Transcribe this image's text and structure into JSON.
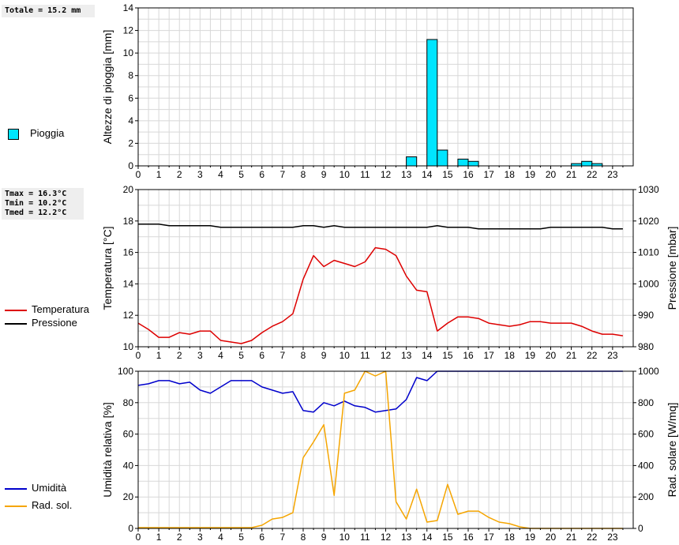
{
  "panel1": {
    "stat": "Totale = 15.2 mm",
    "legend": [
      {
        "label": "Pioggia",
        "color": "#00e5ff"
      }
    ]
  },
  "panel2": {
    "stats": [
      "Tmax = 16.3°C",
      "Tmin = 10.2°C",
      "Tmed = 12.2°C"
    ],
    "legend": [
      {
        "label": "Temperatura",
        "color": "#dd0000"
      },
      {
        "label": "Pressione",
        "color": "#000000"
      }
    ]
  },
  "panel3": {
    "legend": [
      {
        "label": "Umidità",
        "color": "#0000cc"
      },
      {
        "label": "Rad. sol.",
        "color": "#f5a500"
      }
    ]
  },
  "chart_data": [
    {
      "type": "bar",
      "ylabel": "Altezze di pioggia [mm]",
      "xlim": [
        0,
        24
      ],
      "ylim": [
        0,
        14
      ],
      "yticks": [
        0,
        2,
        4,
        6,
        8,
        10,
        12,
        14
      ],
      "xticks": [
        0,
        1,
        2,
        3,
        4,
        5,
        6,
        7,
        8,
        9,
        10,
        11,
        12,
        13,
        14,
        15,
        16,
        17,
        18,
        19,
        20,
        21,
        22,
        23
      ],
      "grid": true,
      "series": [
        {
          "name": "Pioggia",
          "color": "#00e5ff",
          "bars": [
            {
              "x": 13.0,
              "value": 0.8
            },
            {
              "x": 14.0,
              "value": 11.2
            },
            {
              "x": 14.5,
              "value": 1.4
            },
            {
              "x": 15.5,
              "value": 0.6
            },
            {
              "x": 16.0,
              "value": 0.4
            },
            {
              "x": 21.0,
              "value": 0.2
            },
            {
              "x": 21.5,
              "value": 0.4
            },
            {
              "x": 22.0,
              "value": 0.2
            }
          ]
        }
      ]
    },
    {
      "type": "line",
      "ylabel": "Temperatura [°C]",
      "y2label": "Pressione [mbar]",
      "xlim": [
        0,
        24
      ],
      "ylim": [
        10,
        20
      ],
      "y2lim": [
        980,
        1030
      ],
      "yticks": [
        10,
        12,
        14,
        16,
        18,
        20
      ],
      "y2ticks": [
        980,
        990,
        1000,
        1010,
        1020,
        1030
      ],
      "xticks": [
        0,
        1,
        2,
        3,
        4,
        5,
        6,
        7,
        8,
        9,
        10,
        11,
        12,
        13,
        14,
        15,
        16,
        17,
        18,
        19,
        20,
        21,
        22,
        23
      ],
      "grid": true,
      "series": [
        {
          "name": "Temperatura",
          "color": "#dd0000",
          "axis": "left",
          "x": [
            0,
            0.5,
            1,
            1.5,
            2,
            2.5,
            3,
            3.5,
            4,
            4.5,
            5,
            5.5,
            6,
            6.5,
            7,
            7.5,
            8,
            8.5,
            9,
            9.5,
            10,
            10.5,
            11,
            11.5,
            12,
            12.5,
            13,
            13.5,
            14,
            14.5,
            15,
            15.5,
            16,
            16.5,
            17,
            17.5,
            18,
            18.5,
            19,
            19.5,
            20,
            20.5,
            21,
            21.5,
            22,
            22.5,
            23,
            23.5
          ],
          "y": [
            11.5,
            11.1,
            10.6,
            10.6,
            10.9,
            10.8,
            11.0,
            11.0,
            10.4,
            10.3,
            10.2,
            10.4,
            10.9,
            11.3,
            11.6,
            12.1,
            14.3,
            15.8,
            15.1,
            15.5,
            15.3,
            15.1,
            15.4,
            16.3,
            16.2,
            15.8,
            14.5,
            13.6,
            13.5,
            11.0,
            11.5,
            11.9,
            11.9,
            11.8,
            11.5,
            11.4,
            11.3,
            11.4,
            11.6,
            11.6,
            11.5,
            11.5,
            11.5,
            11.3,
            11.0,
            10.8,
            10.8,
            10.7
          ]
        },
        {
          "name": "Pressione",
          "color": "#000000",
          "axis": "right",
          "x": [
            0,
            1,
            1.5,
            2,
            3.5,
            4,
            7.5,
            8,
            8.5,
            9,
            9.5,
            10,
            10.5,
            11,
            14,
            14.5,
            15,
            16,
            16.5,
            19,
            19.5,
            20,
            22.5,
            23,
            23.5
          ],
          "y": [
            1019,
            1019,
            1018.5,
            1018.5,
            1018.5,
            1018,
            1018,
            1018.5,
            1018.5,
            1018,
            1018.5,
            1018,
            1018,
            1018,
            1018,
            1018.5,
            1018,
            1018,
            1017.5,
            1017.5,
            1017.5,
            1018,
            1018,
            1017.5,
            1017.5
          ]
        }
      ]
    },
    {
      "type": "line",
      "ylabel": "Umidità relativa [%]",
      "y2label": "Rad. solare [W/mq]",
      "xlim": [
        0,
        24
      ],
      "ylim": [
        0,
        100
      ],
      "y2lim": [
        0,
        1000
      ],
      "yticks": [
        0,
        20,
        40,
        60,
        80,
        100
      ],
      "y2ticks": [
        0,
        200,
        400,
        600,
        800,
        1000
      ],
      "xticks": [
        0,
        1,
        2,
        3,
        4,
        5,
        6,
        7,
        8,
        9,
        10,
        11,
        12,
        13,
        14,
        15,
        16,
        17,
        18,
        19,
        20,
        21,
        22,
        23
      ],
      "grid": true,
      "series": [
        {
          "name": "Umidità",
          "color": "#0000cc",
          "axis": "left",
          "x": [
            0,
            0.5,
            1,
            1.5,
            2,
            2.5,
            3,
            3.5,
            4,
            4.5,
            5,
            5.5,
            6,
            6.5,
            7,
            7.5,
            8,
            8.5,
            9,
            9.5,
            10,
            10.5,
            11,
            11.5,
            12,
            12.5,
            13,
            13.5,
            14,
            14.5,
            15,
            16,
            17,
            18,
            19,
            20,
            21,
            22,
            23,
            23.5
          ],
          "y": [
            91,
            92,
            94,
            94,
            92,
            93,
            88,
            86,
            90,
            94,
            94,
            94,
            90,
            88,
            86,
            87,
            75,
            74,
            80,
            78,
            81,
            78,
            77,
            74,
            75,
            76,
            82,
            96,
            94,
            100,
            100,
            100,
            100,
            100,
            100,
            100,
            100,
            100,
            100,
            100
          ]
        },
        {
          "name": "Rad. sol.",
          "color": "#f5a500",
          "axis": "right",
          "x": [
            0,
            1,
            2,
            3,
            4,
            5,
            5.5,
            6,
            6.5,
            7,
            7.5,
            8,
            8.5,
            9,
            9.5,
            10,
            10.5,
            11,
            11.5,
            12,
            12.5,
            13,
            13.5,
            14,
            14.5,
            15,
            15.5,
            16,
            16.5,
            17,
            17.5,
            18,
            18.5,
            19,
            19.5,
            20,
            21,
            22,
            23,
            23.5
          ],
          "y": [
            5,
            5,
            5,
            5,
            5,
            5,
            5,
            20,
            60,
            70,
            100,
            450,
            550,
            660,
            210,
            860,
            880,
            1000,
            970,
            1000,
            170,
            60,
            250,
            40,
            50,
            280,
            90,
            110,
            110,
            70,
            40,
            30,
            10,
            0,
            0,
            0,
            0,
            0,
            0,
            0
          ]
        }
      ]
    }
  ]
}
